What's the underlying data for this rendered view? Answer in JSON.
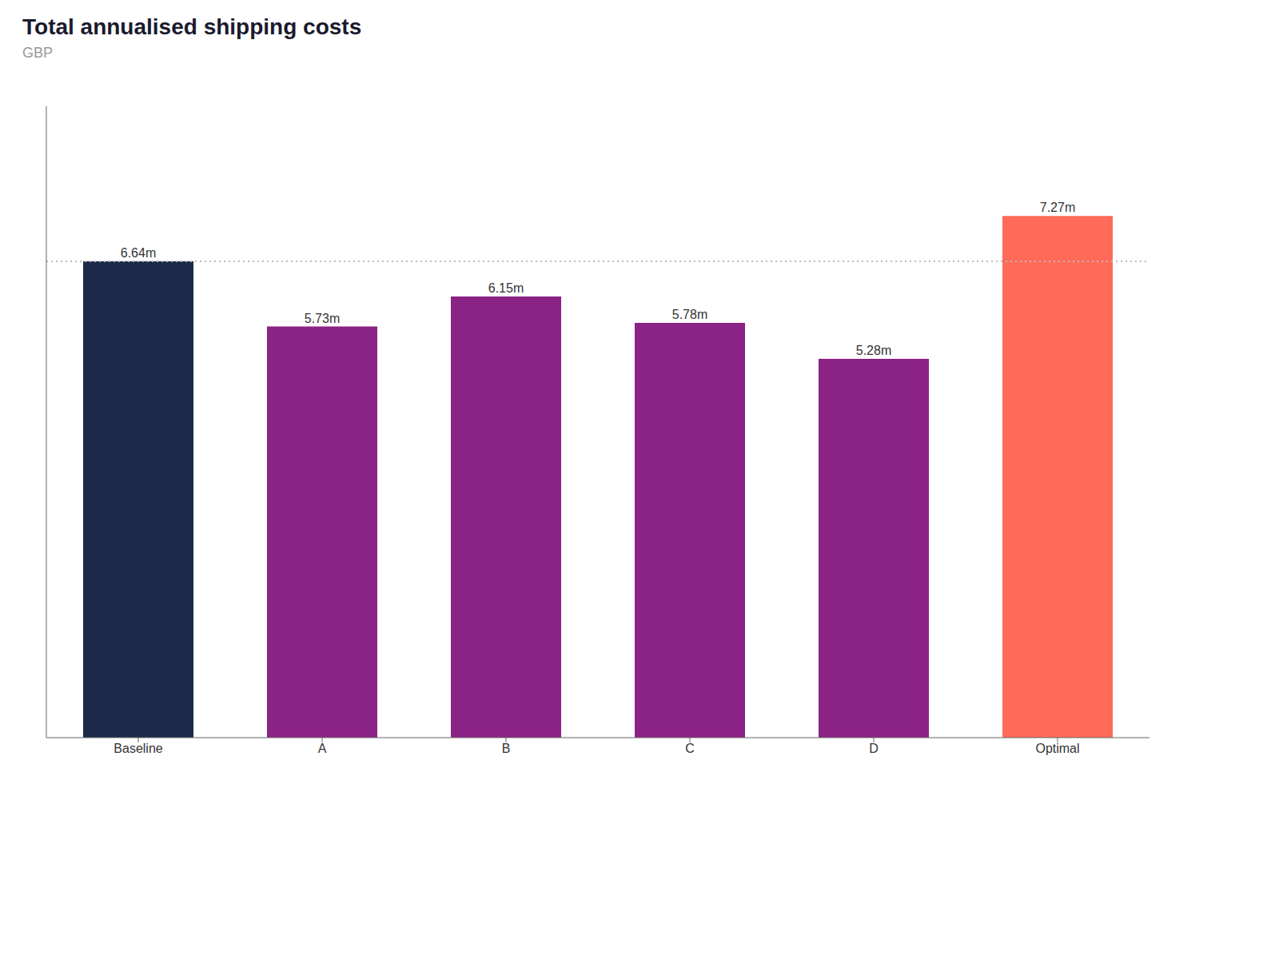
{
  "chart_data": {
    "type": "bar",
    "title": "Total annualised shipping costs",
    "subtitle": "GBP",
    "categories": [
      "Baseline",
      "A",
      "B",
      "C",
      "D",
      "Optimal"
    ],
    "values": [
      6.64,
      5.73,
      6.15,
      5.78,
      5.28,
      7.27
    ],
    "value_labels": [
      "6.64m",
      "5.73m",
      "6.15m",
      "5.78m",
      "5.28m",
      "7.27m"
    ],
    "colors": [
      "#1b2a4a",
      "#8b2285",
      "#8b2285",
      "#8b2285",
      "#8b2285",
      "#ff6b58"
    ],
    "ylim": [
      0,
      8.8
    ],
    "data_labels": true,
    "tick_labels": "x",
    "grid": false,
    "reference_line": {
      "value": 6.64,
      "color": "#bbbbbb",
      "line_style": "dotted"
    }
  }
}
